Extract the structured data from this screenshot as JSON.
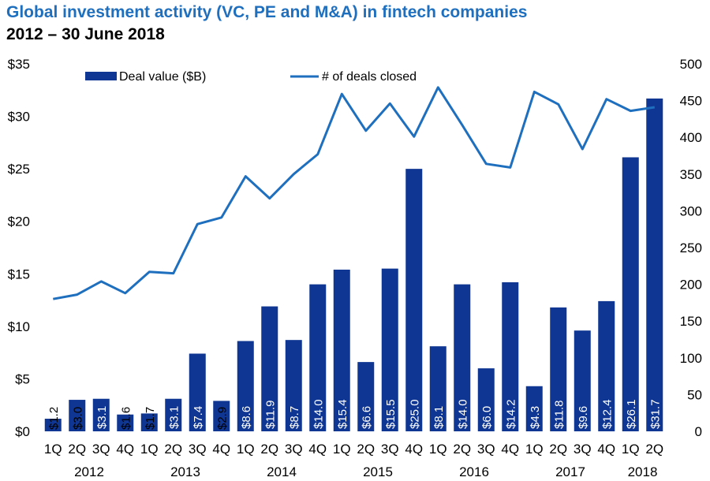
{
  "header": {
    "title": "Global investment activity (VC, PE and M&A) in fintech companies",
    "subtitle": "2012 – 30 June 2018"
  },
  "colors": {
    "title": "#1f6fbf",
    "bar": "#0f3692",
    "line": "#1f6fbf",
    "label_on_bar": "#ffffff",
    "label_off_bar": "#000000"
  },
  "chart_data": {
    "type": "bar",
    "combo_line_series": true,
    "categories": [
      "1Q",
      "2Q",
      "3Q",
      "4Q",
      "1Q",
      "2Q",
      "3Q",
      "4Q",
      "1Q",
      "2Q",
      "3Q",
      "4Q",
      "1Q",
      "2Q",
      "3Q",
      "4Q",
      "1Q",
      "2Q",
      "3Q",
      "4Q",
      "1Q",
      "2Q",
      "3Q",
      "4Q",
      "1Q",
      "2Q"
    ],
    "years": [
      {
        "label": "2012",
        "start": 0,
        "end": 3
      },
      {
        "label": "2013",
        "start": 4,
        "end": 7
      },
      {
        "label": "2014",
        "start": 8,
        "end": 11
      },
      {
        "label": "2015",
        "start": 12,
        "end": 15
      },
      {
        "label": "2016",
        "start": 16,
        "end": 19
      },
      {
        "label": "2017",
        "start": 20,
        "end": 23
      },
      {
        "label": "2018",
        "start": 24,
        "end": 25
      }
    ],
    "series": [
      {
        "name": "Deal value ($B)",
        "type": "bar",
        "axis": "left",
        "values": [
          1.2,
          3.0,
          3.1,
          1.6,
          1.7,
          3.1,
          7.4,
          2.9,
          8.6,
          11.9,
          8.7,
          14.0,
          15.4,
          6.6,
          15.5,
          25.0,
          8.1,
          14.0,
          6.0,
          14.2,
          4.3,
          11.8,
          9.6,
          12.4,
          26.1,
          31.7
        ],
        "labels": [
          "$1.2",
          "$3.0",
          "$3.1",
          "$1.6",
          "$1.7",
          "$3.1",
          "$7.4",
          "$2.9",
          "$8.6",
          "$11.9",
          "$8.7",
          "$14.0",
          "$15.4",
          "$6.6",
          "$15.5",
          "$25.0",
          "$8.1",
          "$14.0",
          "$6.0",
          "$14.2",
          "$4.3",
          "$11.8",
          "$9.6",
          "$12.4",
          "$26.1",
          "$31.7"
        ]
      },
      {
        "name": "# of deals closed",
        "type": "line",
        "axis": "right",
        "values": [
          180,
          186,
          204,
          188,
          217,
          215,
          282,
          291,
          347,
          317,
          350,
          377,
          459,
          409,
          446,
          401,
          468,
          417,
          364,
          359,
          462,
          445,
          384,
          452,
          436,
          441
        ]
      }
    ],
    "y_left": {
      "ylim": [
        0,
        35
      ],
      "ticks": [
        0,
        5,
        10,
        15,
        20,
        25,
        30,
        35
      ],
      "tick_labels": [
        "$0",
        "$5",
        "$10",
        "$15",
        "$20",
        "$25",
        "$30",
        "$35"
      ]
    },
    "y_right": {
      "ylim": [
        0,
        500
      ],
      "ticks": [
        0,
        50,
        100,
        150,
        200,
        250,
        300,
        350,
        400,
        450,
        500
      ],
      "tick_labels": [
        "0",
        "50",
        "100",
        "150",
        "200",
        "250",
        "300",
        "350",
        "400",
        "450",
        "500"
      ]
    },
    "legend_placement": "top",
    "grid": false
  }
}
